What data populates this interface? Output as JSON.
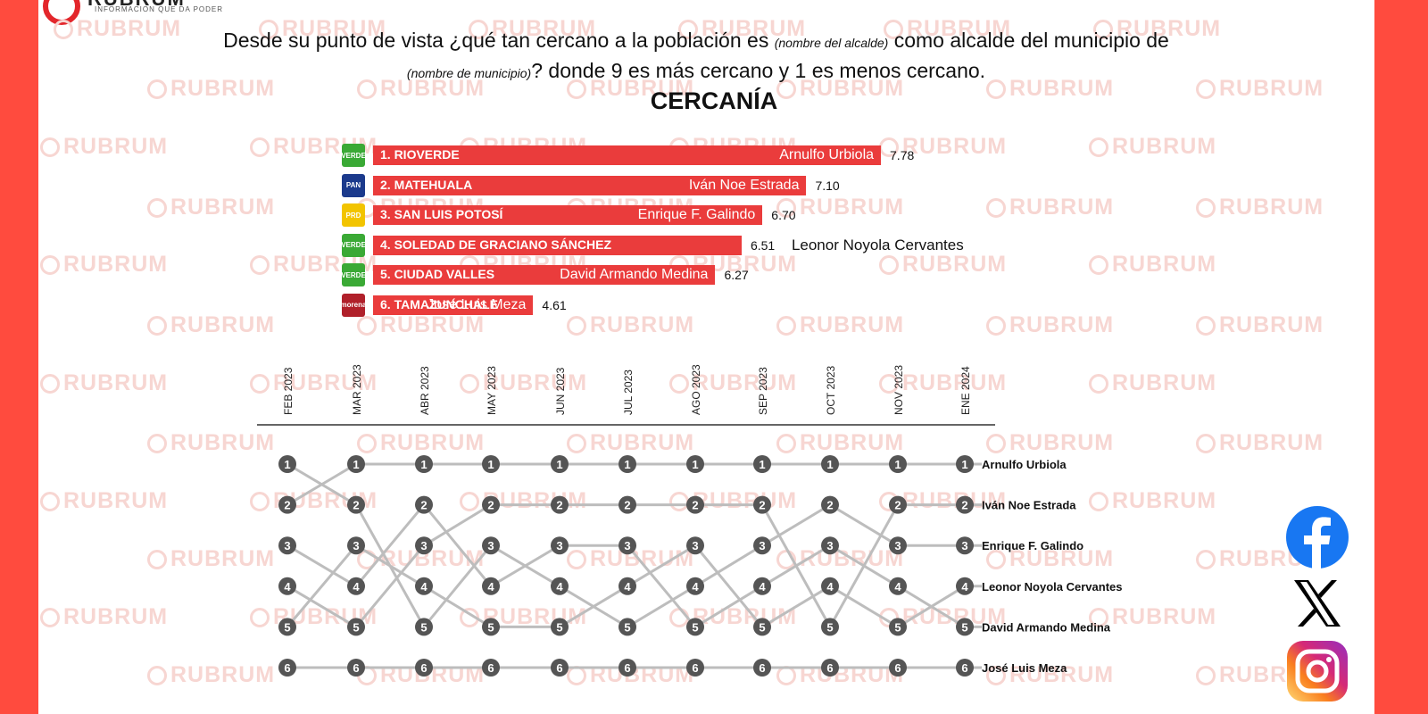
{
  "brand": {
    "name": "RUBRUM",
    "tagline": "INFORMACION QUE DA PODER",
    "watermark": "RUBRUM",
    "accent": "#ea3c3c",
    "frame": "#ff4b3e"
  },
  "question": {
    "part1": "Desde su punto de vista ¿qué tan cercano a la población es",
    "note1": "(nombre del alcalde)",
    "part2": "como alcalde del municipio de",
    "note2": "(nombre de municipio)",
    "part3": "? donde 9 es más cercano y 1 es menos cercano."
  },
  "chart_data": [
    {
      "type": "bar",
      "title": "CERCANÍA",
      "xlim": [
        0,
        9
      ],
      "categories": [
        "1. RIOVERDE",
        "2. MATEHUALA",
        "3. SAN LUIS POTOSÍ",
        "4. SOLEDAD DE GRACIANO SÁNCHEZ",
        "5. CIUDAD VALLES",
        "6. TAMAZUNCHALE"
      ],
      "mayors": [
        "Arnulfo Urbiola",
        "Iván Noe Estrada",
        "Enrique F. Galindo",
        "Leonor Noyola Cervantes",
        "David Armando Medina",
        "José Luis Meza"
      ],
      "values": [
        7.78,
        7.1,
        6.7,
        6.51,
        6.27,
        4.61
      ],
      "value_labels": [
        "7.78",
        "7.10",
        "6.70",
        "6.51",
        "6.27",
        "4.61"
      ],
      "name_outside": [
        false,
        false,
        false,
        true,
        false,
        false
      ],
      "parties": [
        "VERDE",
        "PAN",
        "PRD",
        "VERDE",
        "VERDE",
        "morena"
      ],
      "party_colors": [
        "#3aa935",
        "#1b3a8c",
        "#f2c400",
        "#3aa935",
        "#3aa935",
        "#b0202a"
      ]
    },
    {
      "type": "line",
      "subtype": "bump",
      "x": [
        "FEB 2023",
        "MAR 2023",
        "ABR 2023",
        "MAY 2023",
        "JUN 2023",
        "JUL 2023",
        "AGO 2023",
        "SEP 2023",
        "OCT 2023",
        "NOV 2023",
        "ENE 2024"
      ],
      "ylim": [
        1,
        6
      ],
      "y_inverted": true,
      "rank_labels": [
        "1",
        "2",
        "3",
        "4",
        "5",
        "6"
      ],
      "series": [
        {
          "name": "Arnulfo Urbiola",
          "values": [
            2,
            1,
            1,
            1,
            1,
            1,
            1,
            1,
            1,
            1,
            1
          ]
        },
        {
          "name": "Iván Noe Estrada",
          "values": [
            4,
            5,
            3,
            2,
            2,
            2,
            2,
            2,
            5,
            2,
            2
          ]
        },
        {
          "name": "Enrique F. Galindo",
          "values": [
            1,
            2,
            5,
            3,
            4,
            5,
            4,
            3,
            2,
            3,
            3
          ]
        },
        {
          "name": "Leonor Noyola Cervantes",
          "values": [
            5,
            3,
            4,
            5,
            5,
            4,
            3,
            5,
            4,
            5,
            4
          ]
        },
        {
          "name": "David Armando Medina",
          "values": [
            3,
            4,
            2,
            4,
            3,
            3,
            5,
            4,
            3,
            4,
            5
          ]
        },
        {
          "name": "José Luis Meza",
          "values": [
            6,
            6,
            6,
            6,
            6,
            6,
            6,
            6,
            6,
            6,
            6
          ]
        }
      ]
    }
  ],
  "social": [
    {
      "name": "facebook-icon",
      "glyph": "f",
      "color": "#1877f2"
    },
    {
      "name": "x-icon",
      "glyph": "X",
      "color": "#000000"
    },
    {
      "name": "instagram-icon",
      "glyph": "◎",
      "color": "#d6249f"
    }
  ]
}
